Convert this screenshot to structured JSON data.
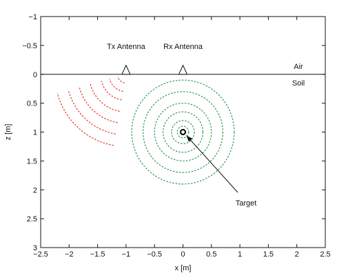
{
  "figure": {
    "xlabel": "x [m]",
    "ylabel": "z [m]",
    "xlim": [
      -2.5,
      2.5
    ],
    "ylim": [
      -1,
      3
    ],
    "x_inverted": false,
    "y_inverted": true,
    "x_ticks": [
      {
        "value": -2.5,
        "label": "−2.5"
      },
      {
        "value": -2,
        "label": "−2"
      },
      {
        "value": -1.5,
        "label": "−1.5"
      },
      {
        "value": -1,
        "label": "−1"
      },
      {
        "value": -0.5,
        "label": "−0.5"
      },
      {
        "value": 0,
        "label": "0"
      },
      {
        "value": 0.5,
        "label": "0.5"
      },
      {
        "value": 1,
        "label": "1"
      },
      {
        "value": 1.5,
        "label": "1.5"
      },
      {
        "value": 2,
        "label": "2"
      },
      {
        "value": 2.5,
        "label": "2.5"
      }
    ],
    "y_ticks": [
      {
        "value": -1,
        "label": "−1"
      },
      {
        "value": -0.5,
        "label": "−0.5"
      },
      {
        "value": 0,
        "label": "0"
      },
      {
        "value": 0.5,
        "label": "0.5"
      },
      {
        "value": 1,
        "label": "1"
      },
      {
        "value": 1.5,
        "label": "1.5"
      },
      {
        "value": 2,
        "label": "2"
      },
      {
        "value": 2.5,
        "label": "2.5"
      },
      {
        "value": 3,
        "label": "3"
      }
    ],
    "surface_z": 0,
    "layers": {
      "above": "Air",
      "below": "Soil"
    },
    "tx_antenna": {
      "label": "Tx Antenna",
      "x": -1,
      "z": 0
    },
    "rx_antenna": {
      "label": "Rx Antenna",
      "x": 0,
      "z": 0
    },
    "target": {
      "label": "Target",
      "x": 0,
      "z": 1
    },
    "transmitted_wave": {
      "color": "#e8352e",
      "origin": {
        "x": -1,
        "z": 0
      },
      "radii": [
        0.15,
        0.3,
        0.45,
        0.65,
        0.85,
        1.05,
        1.25
      ],
      "angle_range_deg": [
        100,
        165
      ]
    },
    "scattered_wave": {
      "color": "#2e9a4e",
      "origin": {
        "x": 0,
        "z": 1
      },
      "radii": [
        0.1,
        0.2,
        0.35,
        0.5,
        0.7,
        0.9
      ]
    }
  }
}
